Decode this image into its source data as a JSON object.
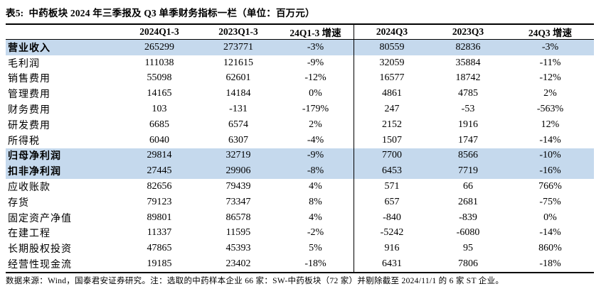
{
  "title": "表5:  中药板块 2024 年三季报及 Q3 单季财务指标一栏（单位：百万元）",
  "table": {
    "columns": [
      "",
      "2024Q1-3",
      "2023Q1-3",
      "24Q1-3 增速",
      "2024Q3",
      "2023Q3",
      "24Q3 增速"
    ],
    "rows": [
      {
        "label": "营业收入",
        "highlight": true,
        "values": [
          "265299",
          "273771",
          "-3%",
          "80559",
          "82836",
          "-3%"
        ]
      },
      {
        "label": "毛利润",
        "highlight": false,
        "values": [
          "111038",
          "121615",
          "-9%",
          "32059",
          "35884",
          "-11%"
        ]
      },
      {
        "label": "销售费用",
        "highlight": false,
        "values": [
          "55098",
          "62601",
          "-12%",
          "16577",
          "18742",
          "-12%"
        ]
      },
      {
        "label": "管理费用",
        "highlight": false,
        "values": [
          "14165",
          "14184",
          "0%",
          "4861",
          "4785",
          "2%"
        ]
      },
      {
        "label": "财务费用",
        "highlight": false,
        "values": [
          "103",
          "-131",
          "-179%",
          "247",
          "-53",
          "-563%"
        ]
      },
      {
        "label": "研发费用",
        "highlight": false,
        "values": [
          "6685",
          "6574",
          "2%",
          "2152",
          "1916",
          "12%"
        ]
      },
      {
        "label": "所得税",
        "highlight": false,
        "values": [
          "6040",
          "6307",
          "-4%",
          "1507",
          "1747",
          "-14%"
        ]
      },
      {
        "label": "归母净利润",
        "highlight": true,
        "values": [
          "29814",
          "32719",
          "-9%",
          "7700",
          "8566",
          "-10%"
        ]
      },
      {
        "label": "扣非净利润",
        "highlight": true,
        "values": [
          "27445",
          "29906",
          "-8%",
          "6453",
          "7719",
          "-16%"
        ]
      },
      {
        "label": "应收账款",
        "highlight": false,
        "values": [
          "82656",
          "79439",
          "4%",
          "571",
          "66",
          "766%"
        ]
      },
      {
        "label": "存货",
        "highlight": false,
        "values": [
          "79123",
          "73347",
          "8%",
          "657",
          "2681",
          "-75%"
        ]
      },
      {
        "label": "固定资产净值",
        "highlight": false,
        "values": [
          "89801",
          "86578",
          "4%",
          "-840",
          "-839",
          "0%"
        ]
      },
      {
        "label": "在建工程",
        "highlight": false,
        "values": [
          "11337",
          "11595",
          "-2%",
          "-5242",
          "-6080",
          "-14%"
        ]
      },
      {
        "label": "长期股权投资",
        "highlight": false,
        "values": [
          "47865",
          "45393",
          "5%",
          "916",
          "95",
          "860%"
        ]
      },
      {
        "label": "经营性现金流",
        "highlight": false,
        "values": [
          "19185",
          "23402",
          "-18%",
          "6431",
          "7806",
          "-18%"
        ]
      }
    ]
  },
  "footer": "数据来源：Wind，国泰君安证券研究。注：选取的中药样本企业 66 家：SW-中药板块（72 家）并剔除截至 2024/11/1 的 6 家 ST 企业。",
  "colors": {
    "highlight_row": "#C5D9ED",
    "border": "#000000",
    "text": "#000000",
    "background": "#FFFFFF"
  }
}
